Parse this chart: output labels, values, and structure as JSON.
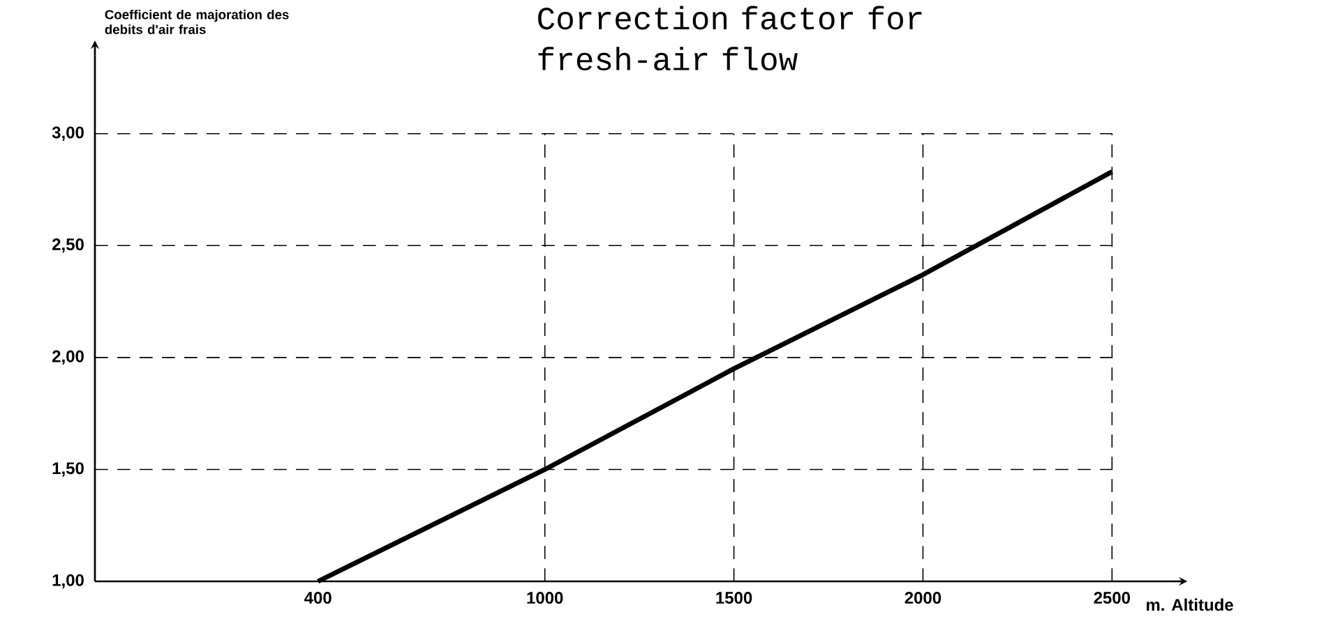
{
  "chart_data": {
    "type": "line",
    "title": "Correction factor for fresh-air flow",
    "ylabel": "Coefficient de majoration des debits d'air frais",
    "xlabel": "m. Altitude",
    "series": [
      {
        "color": "#000000",
        "x": [
          400,
          1000,
          1500,
          2000,
          2500
        ],
        "values": [
          1.0,
          1.5,
          1.95,
          2.37,
          2.83
        ]
      }
    ],
    "xlim": [
      -190,
      2660
    ],
    "ylim": [
      1,
      3.35
    ],
    "xticks": [
      400,
      1000,
      1500,
      2000,
      2500
    ],
    "yticks": [
      {
        "value": 1,
        "label": "1,00"
      },
      {
        "value": 1.5,
        "label": "1,50"
      },
      {
        "value": 2,
        "label": "2,00"
      },
      {
        "value": 2.5,
        "label": "2,50"
      },
      {
        "value": 3,
        "label": "3,00"
      }
    ],
    "grid": true,
    "marker": "none",
    "line_style": "solid"
  }
}
